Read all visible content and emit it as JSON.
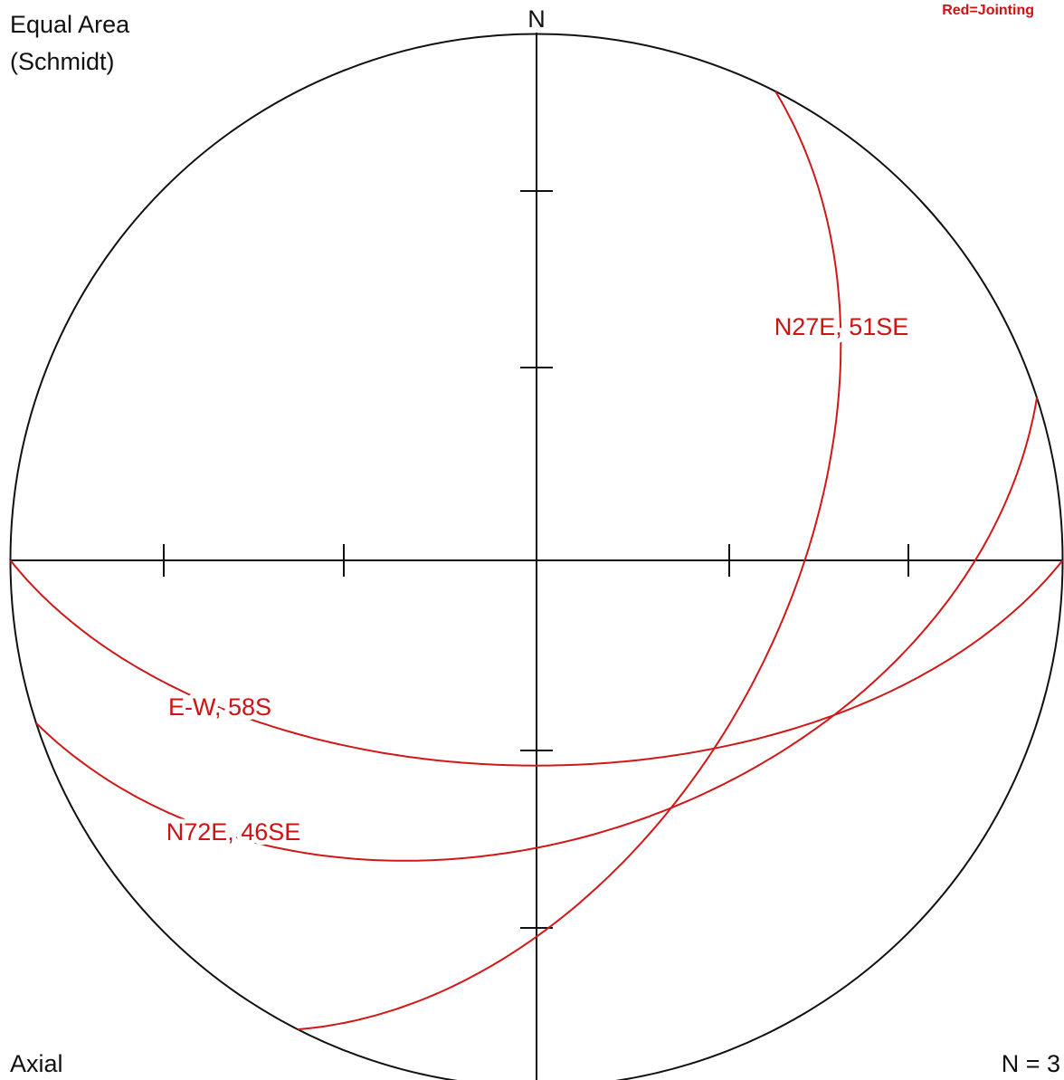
{
  "header": {
    "title": "Equal Area",
    "subtitle": "(Schmidt)",
    "north": "N",
    "legend": "Red=Jointing"
  },
  "footer": {
    "left": "Axial",
    "right": "N = 3"
  },
  "planes": [
    {
      "label": "N27E, 51SE"
    },
    {
      "label": "E-W, 58S"
    },
    {
      "label": "N72E, 46SE"
    }
  ]
}
